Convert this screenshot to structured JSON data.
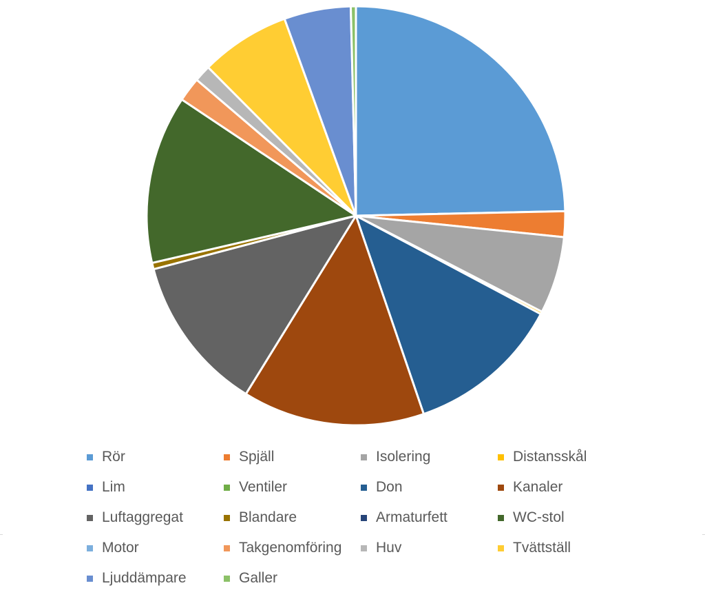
{
  "chart_data": {
    "type": "pie",
    "title": "",
    "legend_position": "bottom",
    "slices": [
      {
        "name": "Rör",
        "value": 24.9,
        "color": "#5B9BD5"
      },
      {
        "name": "Spjäll",
        "value": 2.0,
        "color": "#ED7D31"
      },
      {
        "name": "Isolering",
        "value": 6.0,
        "color": "#A5A5A5"
      },
      {
        "name": "Distansskål",
        "value": 0.2,
        "color": "#FFC000"
      },
      {
        "name": "Lim",
        "value": 0.0,
        "color": "#4472C4"
      },
      {
        "name": "Ventiler",
        "value": 0.0,
        "color": "#70AD47"
      },
      {
        "name": "Don",
        "value": 12.1,
        "color": "#255E91"
      },
      {
        "name": "Kanaler",
        "value": 14.2,
        "color": "#9E480E"
      },
      {
        "name": "Luftaggregat",
        "value": 12.2,
        "color": "#636363"
      },
      {
        "name": "Blandare",
        "value": 0.5,
        "color": "#997300"
      },
      {
        "name": "Armaturfett",
        "value": 0.0,
        "color": "#264478"
      },
      {
        "name": "WC-stol",
        "value": 13.1,
        "color": "#43682B"
      },
      {
        "name": "Motor",
        "value": 0.0,
        "color": "#7CAFDD"
      },
      {
        "name": "Takgenomföring",
        "value": 1.9,
        "color": "#F1975A"
      },
      {
        "name": "Huv",
        "value": 1.3,
        "color": "#B7B7B7"
      },
      {
        "name": "Tvättställ",
        "value": 7.0,
        "color": "#FFCD33"
      },
      {
        "name": "Ljuddämpare",
        "value": 5.2,
        "color": "#698ED0"
      },
      {
        "name": "Galler",
        "value": 0.4,
        "color": "#8CC168"
      }
    ]
  }
}
